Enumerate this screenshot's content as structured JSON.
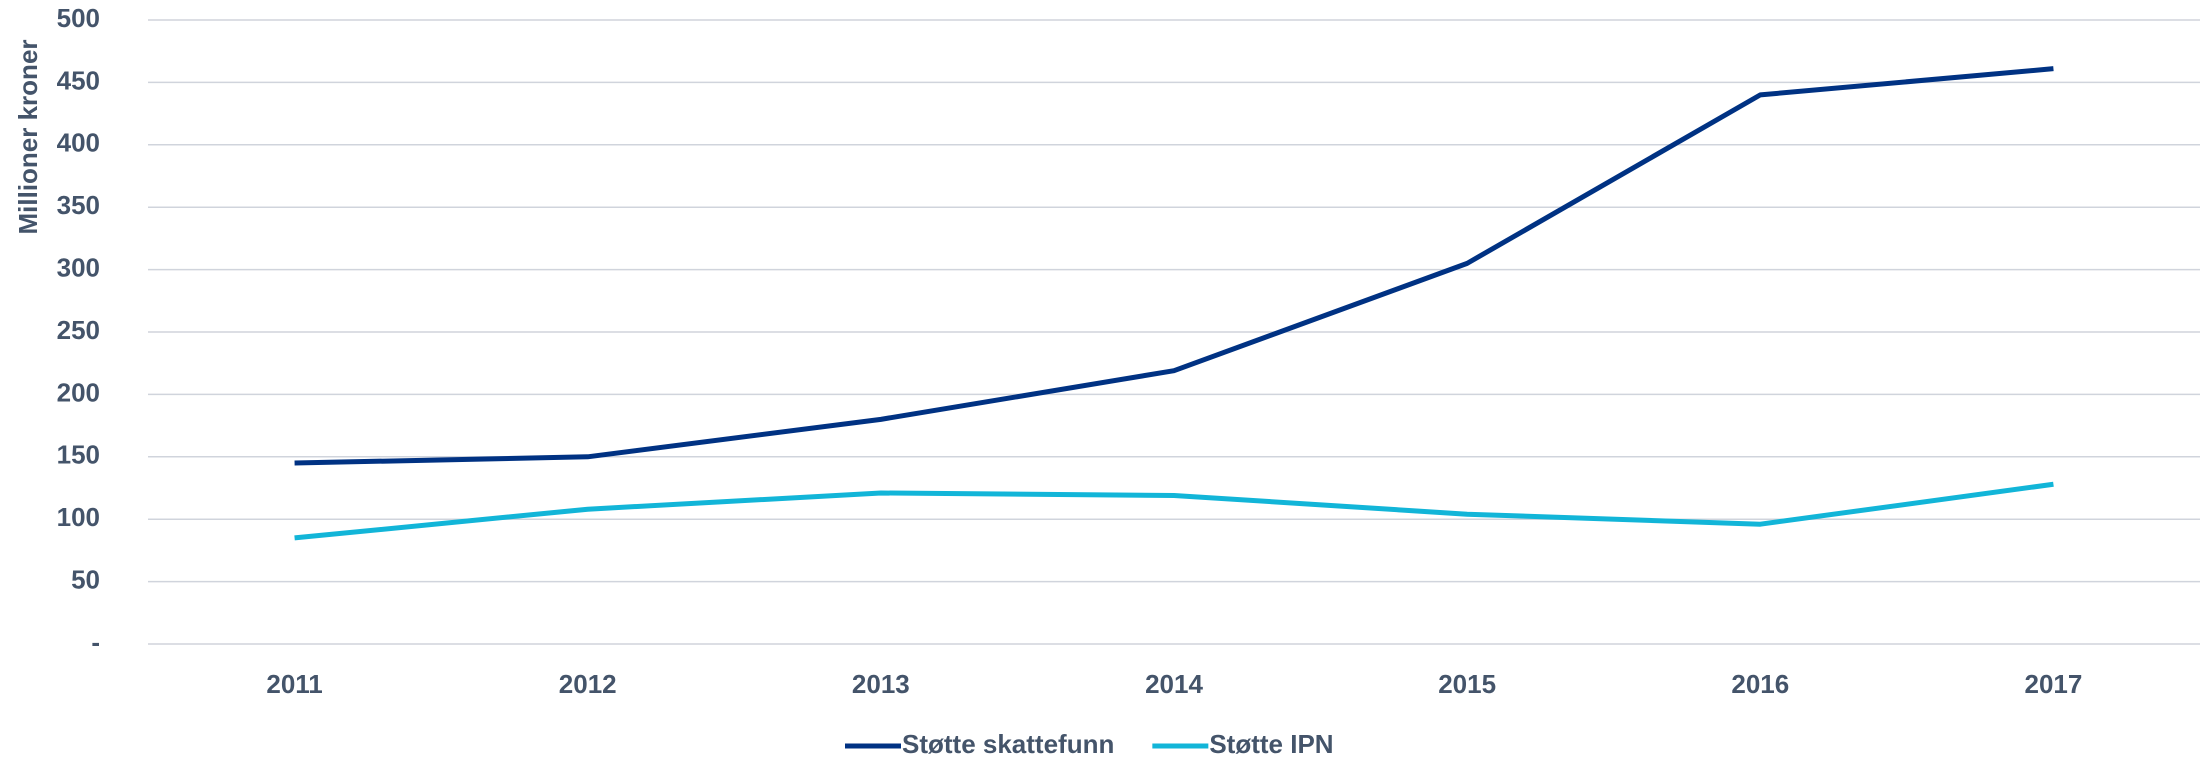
{
  "chart_data": {
    "type": "line",
    "y_label": "Millioner kroner",
    "categories": [
      "2011",
      "2012",
      "2013",
      "2014",
      "2015",
      "2016",
      "2017"
    ],
    "series": [
      {
        "name": "Støtte skattefunn",
        "color": "#003283",
        "values": [
          145,
          150,
          180,
          219,
          305,
          440,
          461
        ]
      },
      {
        "name": "Støtte IPN",
        "color": "#12b5d8",
        "values": [
          85,
          108,
          121,
          119,
          104,
          96,
          128
        ]
      }
    ],
    "ylim": [
      0,
      500
    ],
    "yticks": [
      {
        "value": 0,
        "label": "-"
      },
      50,
      100,
      150,
      200,
      250,
      300,
      350,
      400,
      450,
      500
    ],
    "grid": true,
    "legend": "bottom"
  }
}
